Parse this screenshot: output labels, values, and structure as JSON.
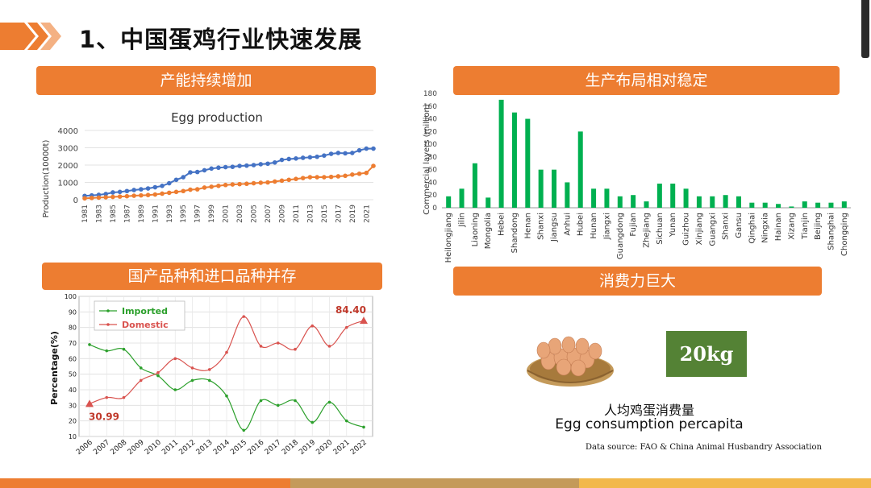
{
  "slide_title": "1、中国蛋鸡行业快速发展",
  "section_labels": {
    "capacity": "产能持续增加",
    "layout": "生产布局相对稳定",
    "breeds": "国产品种和进口品种并存",
    "consumption": "消费力巨大"
  },
  "consumption": {
    "value": "20kg",
    "label_cn": "人均鸡蛋消费量",
    "label_en": "Egg consumption percapita"
  },
  "data_source": "Data source: FAO & China Animal Husbandry Association",
  "colors": {
    "accent": "#ed7d31",
    "accent_dark": "#c55a11",
    "green": "#548235",
    "bar_green": "#00b050",
    "line_blue": "#4472c4"
  },
  "chart_data": [
    {
      "type": "line",
      "title": "Egg production",
      "ylabel": "Production(10000t)",
      "ylim": [
        0,
        4000
      ],
      "yticks": [
        0,
        1000,
        2000,
        3000,
        4000
      ],
      "x": [
        1981,
        1982,
        1983,
        1984,
        1985,
        1986,
        1987,
        1988,
        1989,
        1990,
        1991,
        1992,
        1993,
        1994,
        1995,
        1996,
        1997,
        1998,
        1999,
        2000,
        2001,
        2002,
        2003,
        2004,
        2005,
        2006,
        2007,
        2008,
        2009,
        2010,
        2011,
        2012,
        2013,
        2014,
        2015,
        2016,
        2017,
        2018,
        2019,
        2020,
        2021,
        2022
      ],
      "xtick_labels": [
        "1981",
        "1983",
        "1985",
        "1987",
        "1989",
        "1991",
        "1993",
        "1995",
        "1997",
        "1999",
        "2001",
        "2003",
        "2005",
        "2007",
        "2009",
        "2011",
        "2013",
        "2015",
        "2017",
        "2019",
        "2021"
      ],
      "series": [
        {
          "color": "#4472c4",
          "values": [
            220,
            250,
            280,
            330,
            420,
            450,
            500,
            560,
            600,
            650,
            720,
            800,
            950,
            1150,
            1300,
            1580,
            1600,
            1700,
            1800,
            1850,
            1880,
            1900,
            1950,
            1970,
            2000,
            2050,
            2080,
            2150,
            2300,
            2350,
            2380,
            2420,
            2450,
            2480,
            2550,
            2650,
            2700,
            2680,
            2700,
            2850,
            2950,
            2950
          ]
        },
        {
          "color": "#ed7d31",
          "values": [
            80,
            100,
            120,
            140,
            160,
            180,
            200,
            230,
            250,
            270,
            300,
            350,
            400,
            450,
            500,
            580,
            600,
            700,
            750,
            800,
            850,
            880,
            900,
            920,
            950,
            980,
            1000,
            1050,
            1100,
            1150,
            1200,
            1250,
            1300,
            1300,
            1300,
            1320,
            1350,
            1380,
            1450,
            1500,
            1550,
            1950
          ]
        }
      ]
    },
    {
      "type": "bar",
      "ylabel": "Commercial layers (million)",
      "ylim": [
        0,
        180
      ],
      "yticks": [
        0,
        20,
        40,
        60,
        80,
        100,
        120,
        140,
        160,
        180
      ],
      "categories": [
        "Heilongjiang",
        "Jilin",
        "Liaoning",
        "Mongolia",
        "Hebei",
        "Shandong",
        "Henan",
        "Shanxi",
        "Jiangsu",
        "Anhui",
        "Hubei",
        "Hunan",
        "Jiangxi",
        "Guangdong",
        "Fujian",
        "Zhejiang",
        "Sichuan",
        "Yunan",
        "Guizhou",
        "Xinjiang",
        "Guangxi",
        "Shanxi",
        "Gansu",
        "Qinghai",
        "Ningxia",
        "Hainan",
        "Xizang",
        "Tianjin",
        "Beijing",
        "Shanghai",
        "Chongqing"
      ],
      "values": [
        18,
        30,
        70,
        16,
        170,
        150,
        140,
        60,
        60,
        40,
        120,
        30,
        30,
        18,
        20,
        10,
        38,
        38,
        30,
        18,
        18,
        20,
        18,
        8,
        8,
        6,
        2,
        10,
        8,
        8,
        10
      ],
      "color": "#00b050"
    },
    {
      "type": "line",
      "ylabel": "Percentage(%)",
      "ylim": [
        10,
        100
      ],
      "yticks": [
        10,
        20,
        30,
        40,
        50,
        60,
        70,
        80,
        90,
        100
      ],
      "x": [
        "2006",
        "2007",
        "2008",
        "2009",
        "2010",
        "2011",
        "2012",
        "2013",
        "2014",
        "2015",
        "2016",
        "2017",
        "2018",
        "2019",
        "2020",
        "2021",
        "2022"
      ],
      "series": [
        {
          "name": "Imported",
          "color": "#2ca02c",
          "values": [
            69,
            65,
            66,
            54,
            49,
            40,
            46,
            46,
            36,
            14,
            33,
            30,
            33,
            19,
            32,
            20,
            16
          ]
        },
        {
          "name": "Domestic",
          "color": "#d9534f",
          "values": [
            30.99,
            35,
            35,
            46,
            51,
            60,
            54,
            53,
            64,
            87,
            68,
            70,
            66,
            81,
            68,
            80,
            84.4
          ]
        }
      ],
      "annotations": [
        {
          "text": "84.40"
        },
        {
          "text": "30.99"
        }
      ]
    }
  ]
}
